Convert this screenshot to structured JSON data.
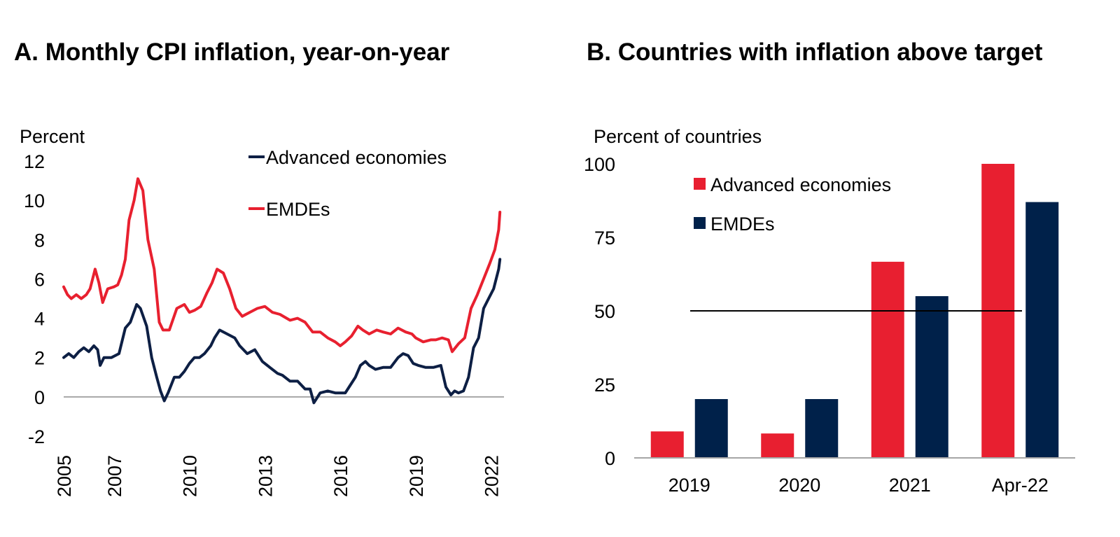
{
  "colors": {
    "advanced": "#0d1f44",
    "emdes": "#e8202f",
    "bar_advanced": "#e81f30",
    "bar_emdes": "#00214a",
    "axis": "#a6a6a6"
  },
  "chart_data": [
    {
      "id": "A",
      "type": "line",
      "title": "A. Monthly CPI inflation, year-on-year",
      "ylabel": "Percent",
      "xlabel": "",
      "ylim": [
        -2,
        12
      ],
      "yticks": [
        12,
        10,
        8,
        6,
        4,
        2,
        0,
        -2
      ],
      "xlim": [
        2005,
        2022.4
      ],
      "xticks": [
        2005,
        2007,
        2010,
        2013,
        2016,
        2019,
        2022
      ],
      "xtick_labels": [
        "2005",
        "2007",
        "2010",
        "2013",
        "2016",
        "2019",
        "2022"
      ],
      "legend": [
        "Advanced economies",
        "EMDEs"
      ],
      "legend_position": "top-right",
      "series": [
        {
          "name": "Advanced economies",
          "color_key": "advanced",
          "x": [
            2005.0,
            2005.2,
            2005.4,
            2005.6,
            2005.8,
            2006.0,
            2006.2,
            2006.35,
            2006.45,
            2006.6,
            2006.9,
            2007.2,
            2007.45,
            2007.65,
            2007.9,
            2008.05,
            2008.3,
            2008.5,
            2008.7,
            2008.85,
            2009.0,
            2009.15,
            2009.4,
            2009.6,
            2009.8,
            2010.0,
            2010.2,
            2010.4,
            2010.6,
            2010.85,
            2011.0,
            2011.2,
            2011.5,
            2011.8,
            2012.0,
            2012.3,
            2012.6,
            2012.9,
            2013.2,
            2013.5,
            2013.7,
            2014.0,
            2014.3,
            2014.6,
            2014.8,
            2014.95,
            2015.2,
            2015.5,
            2015.8,
            2016.0,
            2016.2,
            2016.4,
            2016.6,
            2016.8,
            2017.0,
            2017.15,
            2017.4,
            2017.7,
            2018.0,
            2018.3,
            2018.5,
            2018.7,
            2018.9,
            2019.1,
            2019.4,
            2019.7,
            2020.0,
            2020.2,
            2020.4,
            2020.55,
            2020.7,
            2020.9,
            2021.1,
            2021.3,
            2021.5,
            2021.7,
            2021.9,
            2022.1,
            2022.3,
            2022.35
          ],
          "y": [
            2.0,
            2.2,
            2.0,
            2.3,
            2.5,
            2.3,
            2.6,
            2.4,
            1.6,
            2.0,
            2.0,
            2.2,
            3.5,
            3.8,
            4.7,
            4.5,
            3.6,
            2.0,
            1.0,
            0.3,
            -0.2,
            0.2,
            1.0,
            1.0,
            1.3,
            1.7,
            2.0,
            2.0,
            2.2,
            2.6,
            3.0,
            3.4,
            3.2,
            3.0,
            2.6,
            2.2,
            2.4,
            1.8,
            1.5,
            1.2,
            1.1,
            0.8,
            0.8,
            0.4,
            0.4,
            -0.3,
            0.2,
            0.3,
            0.2,
            0.2,
            0.2,
            0.6,
            1.0,
            1.6,
            1.8,
            1.6,
            1.4,
            1.5,
            1.5,
            2.0,
            2.2,
            2.1,
            1.7,
            1.6,
            1.5,
            1.5,
            1.6,
            0.5,
            0.1,
            0.3,
            0.2,
            0.3,
            1.0,
            2.5,
            3.0,
            4.5,
            5.0,
            5.5,
            6.5,
            7.0
          ]
        },
        {
          "name": "EMDEs",
          "color_key": "emdes",
          "x": [
            2005.0,
            2005.15,
            2005.3,
            2005.5,
            2005.7,
            2005.9,
            2006.05,
            2006.25,
            2006.4,
            2006.55,
            2006.75,
            2007.0,
            2007.15,
            2007.3,
            2007.45,
            2007.6,
            2007.8,
            2007.95,
            2008.15,
            2008.35,
            2008.6,
            2008.8,
            2008.95,
            2009.2,
            2009.5,
            2009.8,
            2010.0,
            2010.2,
            2010.45,
            2010.7,
            2010.9,
            2011.1,
            2011.35,
            2011.6,
            2011.85,
            2012.1,
            2012.4,
            2012.7,
            2013.0,
            2013.3,
            2013.6,
            2014.0,
            2014.3,
            2014.6,
            2014.9,
            2015.2,
            2015.5,
            2015.8,
            2016.0,
            2016.2,
            2016.45,
            2016.7,
            2016.9,
            2017.15,
            2017.45,
            2017.7,
            2018.0,
            2018.3,
            2018.6,
            2018.85,
            2019.0,
            2019.3,
            2019.6,
            2019.8,
            2020.05,
            2020.3,
            2020.45,
            2020.7,
            2020.95,
            2021.2,
            2021.45,
            2021.7,
            2021.95,
            2022.15,
            2022.3,
            2022.35
          ],
          "y": [
            5.6,
            5.2,
            5.0,
            5.2,
            5.0,
            5.2,
            5.5,
            6.5,
            5.8,
            4.8,
            5.5,
            5.6,
            5.7,
            6.2,
            7.0,
            9.0,
            10.0,
            11.1,
            10.5,
            8.0,
            6.5,
            3.8,
            3.4,
            3.4,
            4.5,
            4.7,
            4.3,
            4.4,
            4.6,
            5.3,
            5.8,
            6.5,
            6.3,
            5.5,
            4.5,
            4.1,
            4.3,
            4.5,
            4.6,
            4.3,
            4.2,
            3.9,
            4.0,
            3.8,
            3.3,
            3.3,
            3.0,
            2.8,
            2.6,
            2.8,
            3.1,
            3.6,
            3.4,
            3.2,
            3.4,
            3.3,
            3.2,
            3.5,
            3.3,
            3.2,
            3.0,
            2.8,
            2.9,
            2.9,
            3.0,
            2.9,
            2.3,
            2.7,
            3.0,
            4.5,
            5.2,
            6.0,
            6.8,
            7.5,
            8.5,
            9.4
          ]
        }
      ]
    },
    {
      "id": "B",
      "type": "bar",
      "title": "B. Countries with inflation above target",
      "ylabel": "Percent of countries",
      "xlabel": "",
      "ylim": [
        0,
        100
      ],
      "yticks": [
        100,
        75,
        50,
        25,
        0
      ],
      "categories": [
        "2019",
        "2020",
        "2021",
        "Apr-22"
      ],
      "legend": [
        "Advanced economies",
        "EMDEs"
      ],
      "legend_position": "top-left",
      "reference_line": 50,
      "series": [
        {
          "name": "Advanced economies",
          "color_key": "bar_advanced",
          "values": [
            9,
            8.3,
            66.7,
            100
          ]
        },
        {
          "name": "EMDEs",
          "color_key": "bar_emdes",
          "values": [
            20,
            20,
            55,
            87
          ]
        }
      ]
    }
  ]
}
